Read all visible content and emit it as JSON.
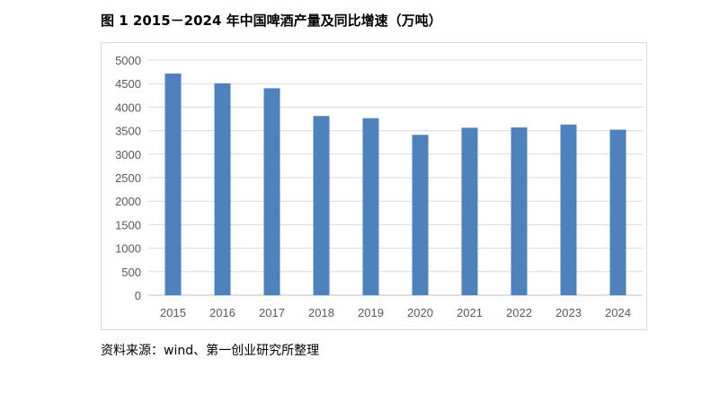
{
  "title": "图 1 2015－2024 年中国啤酒产量及同比增速（万吨）",
  "source": "资料来源：wind、第一创业研究所整理",
  "chart_data": {
    "type": "bar",
    "title": "图 1 2015－2024 年中国啤酒产量及同比增速（万吨）",
    "categories": [
      "2015",
      "2016",
      "2017",
      "2018",
      "2019",
      "2020",
      "2021",
      "2022",
      "2023",
      "2024"
    ],
    "values": [
      4715,
      4506,
      4402,
      3812,
      3765,
      3411,
      3562,
      3569,
      3630,
      3521
    ],
    "ylim": [
      0,
      5000
    ],
    "yticks": [
      0,
      500,
      1000,
      1500,
      2000,
      2500,
      3000,
      3500,
      4000,
      4500,
      5000
    ],
    "grid": true,
    "legend": "none",
    "bar_color": "#4f81bd",
    "xlabel": "",
    "ylabel": ""
  }
}
